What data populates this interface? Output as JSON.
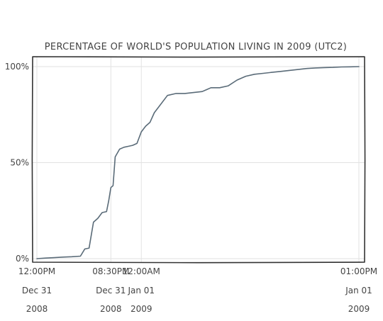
{
  "chart_data": {
    "type": "line",
    "title": "PERCENTAGE OF WORLD'S POPULATION LIVING IN 2009 (UTC2)",
    "xlabel": "",
    "ylabel": "",
    "ylim": [
      0,
      100
    ],
    "x_range_hours": [
      0,
      37
    ],
    "grid": true,
    "legend": "none",
    "line_color": "#5a6b78",
    "y_ticks": [
      {
        "value": 0,
        "label": "0%"
      },
      {
        "value": 50,
        "label": "50%"
      },
      {
        "value": 100,
        "label": "100%"
      }
    ],
    "x_ticks": [
      {
        "hour": 0,
        "time": "12:00PM",
        "day": "Dec 31",
        "year": "2008"
      },
      {
        "hour": 8.5,
        "time": "08:30PM",
        "day": "Dec 31",
        "year": "2008"
      },
      {
        "hour": 12,
        "time": "12:00AM",
        "day": "Jan 01",
        "year": "2009"
      },
      {
        "hour": 37,
        "time": "01:00PM",
        "day": "Jan 01",
        "year": "2009"
      }
    ],
    "series": [
      {
        "x": [
          0,
          1,
          2,
          3,
          4,
          5,
          5.5,
          6,
          6.5,
          7,
          7.5,
          8,
          8.25,
          8.5,
          8.75,
          9,
          9.5,
          10,
          10.5,
          11,
          11.5,
          12,
          12.5,
          13,
          13.5,
          14,
          15,
          16,
          17,
          18,
          19,
          19.5,
          20,
          21,
          22,
          23,
          24,
          25,
          26,
          27,
          28,
          29,
          30,
          31,
          32,
          33,
          34,
          35,
          36,
          37
        ],
        "y": [
          0,
          0.3,
          0.5,
          0.8,
          1,
          1.3,
          5,
          5.5,
          19,
          21,
          24,
          24.5,
          30,
          37,
          38,
          53,
          57,
          58,
          58.5,
          59,
          60,
          66,
          69,
          71,
          76,
          79,
          85,
          86,
          86,
          86.5,
          87,
          88,
          89,
          89,
          90,
          93,
          95,
          96,
          96.5,
          97,
          97.5,
          98,
          98.5,
          99,
          99.3,
          99.5,
          99.6,
          99.8,
          99.9,
          100
        ]
      }
    ]
  }
}
